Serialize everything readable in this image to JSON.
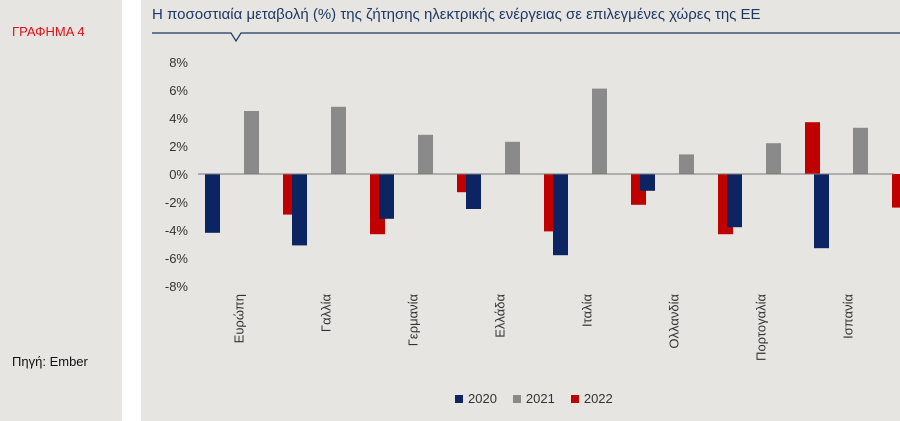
{
  "figure_label": "ΓΡΑΦΗΜΑ 4",
  "source": "Πηγή: Ember",
  "colors": {
    "2020": "#0c2461",
    "2021": "#8a8a8a",
    "2022": "#c00000",
    "title": "#1f3864",
    "accent": "#e10f1a"
  },
  "chart_data": {
    "type": "bar",
    "title": "Η ποσοστιαία μεταβολή (%) της ζήτησης ηλεκτρικής ενέργειας σε επιλεγμένες χώρες της ΕΕ",
    "categories": [
      "Ευρώπη",
      "Γαλλία",
      "Γερμανία",
      "Ελλάδα",
      "Ιταλία",
      "Ολλανδία",
      "Πορτογαλία",
      "Ισπανία"
    ],
    "series": [
      {
        "name": "2020",
        "values": [
          -4.2,
          -5.1,
          -3.2,
          -2.5,
          -5.8,
          -1.2,
          -3.8,
          -5.3
        ]
      },
      {
        "name": "2021",
        "values": [
          4.5,
          4.8,
          2.8,
          2.3,
          6.1,
          1.4,
          2.2,
          3.3
        ]
      },
      {
        "name": "2022",
        "values": [
          -2.9,
          -4.3,
          -1.3,
          -4.1,
          -2.2,
          -4.3,
          3.7,
          -2.4
        ]
      }
    ],
    "ylim": [
      -8,
      8
    ],
    "yticks": [
      "-8%",
      "-6%",
      "-4%",
      "-2%",
      "0%",
      "2%",
      "4%",
      "6%",
      "8%"
    ],
    "legend_position": "bottom",
    "grid": false
  }
}
